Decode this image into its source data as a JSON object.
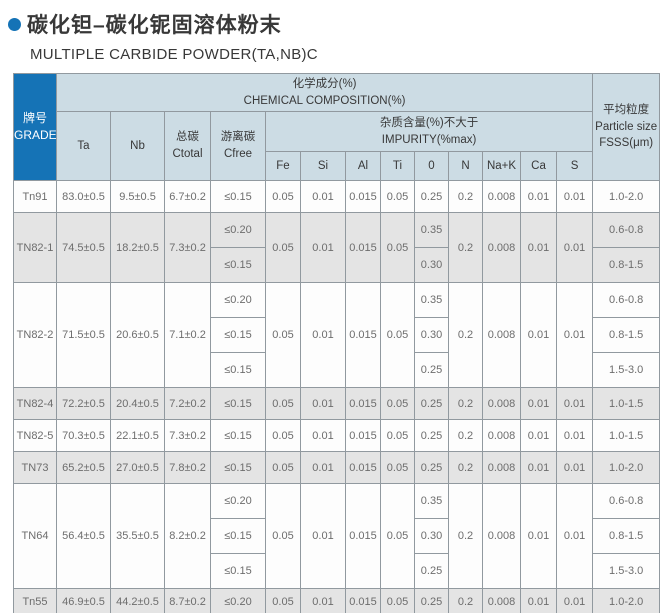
{
  "title": {
    "zh": "碳化钽–碳化铌固溶体粉末",
    "en": "MULTIPLE CARBIDE POWDER(TA,NB)C"
  },
  "colors": {
    "accent_blue": "#1573b6",
    "header_bg": "#ccdce4",
    "alt_row_bg": "#e4e4e4",
    "border": "#91999f"
  },
  "table": {
    "header": {
      "grade": "牌号\nGRADE",
      "chemical": "化学成分(%)\nCHEMICAL COMPOSITION(%)",
      "ta": "Ta",
      "nb": "Nb",
      "ctotal": "总碳\nCtotal",
      "cfree": "游离碳\nCfree",
      "impurity": "杂质含量(%)不大于\nIMPURITY(%max)",
      "impurity_cols": [
        "Fe",
        "Si",
        "Al",
        "Ti",
        "0",
        "N",
        "Na+K",
        "Ca",
        "S"
      ],
      "particle": "平均粒度\nParticle size\nFSSS(μm)"
    },
    "rows": [
      {
        "grade": "Tn91",
        "ta": "83.0±0.5",
        "nb": "9.5±0.5",
        "ctotal": "6.7±0.2",
        "fe": "0.05",
        "si": "0.01",
        "al": "0.015",
        "ti": "0.05",
        "n": "0.2",
        "nak": "0.008",
        "ca": "0.01",
        "s": "0.01",
        "sub": [
          {
            "cfree": "≤0.15",
            "o": "0.25",
            "particle": "1.0-2.0"
          }
        ]
      },
      {
        "grade": "TN82-1",
        "ta": "74.5±0.5",
        "nb": "18.2±0.5",
        "ctotal": "7.3±0.2",
        "fe": "0.05",
        "si": "0.01",
        "al": "0.015",
        "ti": "0.05",
        "n": "0.2",
        "nak": "0.008",
        "ca": "0.01",
        "s": "0.01",
        "sub": [
          {
            "cfree": "≤0.20",
            "o": "0.35",
            "particle": "0.6-0.8"
          },
          {
            "cfree": "≤0.15",
            "o": "0.30",
            "particle": "0.8-1.5"
          }
        ]
      },
      {
        "grade": "TN82-2",
        "ta": "71.5±0.5",
        "nb": "20.6±0.5",
        "ctotal": "7.1±0.2",
        "fe": "0.05",
        "si": "0.01",
        "al": "0.015",
        "ti": "0.05",
        "n": "0.2",
        "nak": "0.008",
        "ca": "0.01",
        "s": "0.01",
        "sub": [
          {
            "cfree": "≤0.20",
            "o": "0.35",
            "particle": "0.6-0.8"
          },
          {
            "cfree": "≤0.15",
            "o": "0.30",
            "particle": "0.8-1.5"
          },
          {
            "cfree": "≤0.15",
            "o": "0.25",
            "particle": "1.5-3.0"
          }
        ]
      },
      {
        "grade": "TN82-4",
        "ta": "72.2±0.5",
        "nb": "20.4±0.5",
        "ctotal": "7.2±0.2",
        "fe": "0.05",
        "si": "0.01",
        "al": "0.015",
        "ti": "0.05",
        "n": "0.2",
        "nak": "0.008",
        "ca": "0.01",
        "s": "0.01",
        "sub": [
          {
            "cfree": "≤0.15",
            "o": "0.25",
            "particle": "1.0-1.5"
          }
        ]
      },
      {
        "grade": "TN82-5",
        "ta": "70.3±0.5",
        "nb": "22.1±0.5",
        "ctotal": "7.3±0.2",
        "fe": "0.05",
        "si": "0.01",
        "al": "0.015",
        "ti": "0.05",
        "n": "0.2",
        "nak": "0.008",
        "ca": "0.01",
        "s": "0.01",
        "sub": [
          {
            "cfree": "≤0.15",
            "o": "0.25",
            "particle": "1.0-1.5"
          }
        ]
      },
      {
        "grade": "TN73",
        "ta": "65.2±0.5",
        "nb": "27.0±0.5",
        "ctotal": "7.8±0.2",
        "fe": "0.05",
        "si": "0.01",
        "al": "0.015",
        "ti": "0.05",
        "n": "0.2",
        "nak": "0.008",
        "ca": "0.01",
        "s": "0.01",
        "sub": [
          {
            "cfree": "≤0.15",
            "o": "0.25",
            "particle": "1.0-2.0"
          }
        ]
      },
      {
        "grade": "TN64",
        "ta": "56.4±0.5",
        "nb": "35.5±0.5",
        "ctotal": "8.2±0.2",
        "fe": "0.05",
        "si": "0.01",
        "al": "0.015",
        "ti": "0.05",
        "n": "0.2",
        "nak": "0.008",
        "ca": "0.01",
        "s": "0.01",
        "sub": [
          {
            "cfree": "≤0.20",
            "o": "0.35",
            "particle": "0.6-0.8"
          },
          {
            "cfree": "≤0.15",
            "o": "0.30",
            "particle": "0.8-1.5"
          },
          {
            "cfree": "≤0.15",
            "o": "0.25",
            "particle": "1.5-3.0"
          }
        ]
      },
      {
        "grade": "Tn55",
        "ta": "46.9±0.5",
        "nb": "44.2±0.5",
        "ctotal": "8.7±0.2",
        "fe": "0.05",
        "si": "0.01",
        "al": "0.015",
        "ti": "0.05",
        "n": "0.2",
        "nak": "0.008",
        "ca": "0.01",
        "s": "0.01",
        "sub": [
          {
            "cfree": "≤0.20",
            "o": "0.25",
            "particle": "1.0-2.0"
          }
        ]
      }
    ]
  }
}
